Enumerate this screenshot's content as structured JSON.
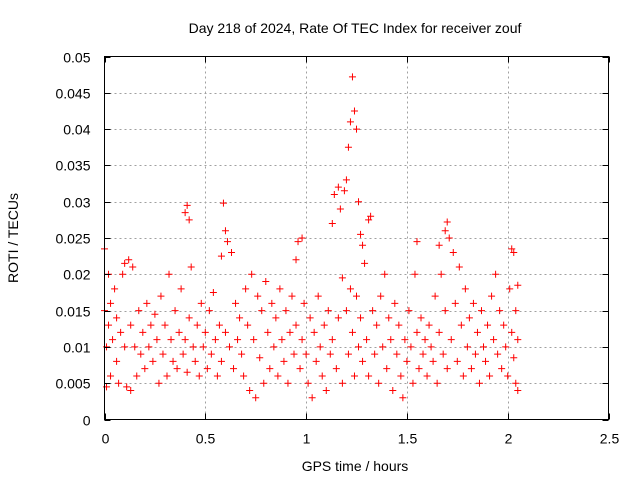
{
  "chart_data": {
    "type": "scatter",
    "title": "Day 218 of 2024, Rate Of TEC Index for receiver zouf",
    "xlabel": "GPS time / hours",
    "ylabel": "ROTI / TECUs",
    "xlim": [
      0,
      2.5
    ],
    "ylim": [
      0,
      0.05
    ],
    "x_ticks": [
      "0",
      "0.5",
      "1",
      "1.5",
      "2",
      "2.5"
    ],
    "y_ticks": [
      "0",
      "0.005",
      "0.01",
      "0.015",
      "0.02",
      "0.025",
      "0.03",
      "0.035",
      "0.04",
      "0.045",
      "0.05"
    ],
    "x_tick_values": [
      0,
      0.5,
      1,
      1.5,
      2,
      2.5
    ],
    "y_tick_values": [
      0,
      0.005,
      0.01,
      0.015,
      0.02,
      0.025,
      0.03,
      0.035,
      0.04,
      0.045,
      0.05
    ],
    "grid": true,
    "marker": "+",
    "color": "#ff0000",
    "series": [
      {
        "name": "ROTI",
        "points": [
          [
            0.0,
            0.0235
          ],
          [
            0.0,
            0.015
          ],
          [
            0.01,
            0.01
          ],
          [
            0.01,
            0.0045
          ],
          [
            0.02,
            0.02
          ],
          [
            0.02,
            0.013
          ],
          [
            0.03,
            0.016
          ],
          [
            0.03,
            0.006
          ],
          [
            0.04,
            0.011
          ],
          [
            0.05,
            0.018
          ],
          [
            0.06,
            0.014
          ],
          [
            0.06,
            0.008
          ],
          [
            0.07,
            0.005
          ],
          [
            0.08,
            0.012
          ],
          [
            0.09,
            0.02
          ],
          [
            0.1,
            0.0215
          ],
          [
            0.1,
            0.01
          ],
          [
            0.11,
            0.0045
          ],
          [
            0.12,
            0.022
          ],
          [
            0.13,
            0.013
          ],
          [
            0.13,
            0.004
          ],
          [
            0.14,
            0.021
          ],
          [
            0.15,
            0.01
          ],
          [
            0.16,
            0.006
          ],
          [
            0.17,
            0.015
          ],
          [
            0.18,
            0.009
          ],
          [
            0.19,
            0.012
          ],
          [
            0.2,
            0.007
          ],
          [
            0.21,
            0.016
          ],
          [
            0.22,
            0.01
          ],
          [
            0.23,
            0.013
          ],
          [
            0.24,
            0.008
          ],
          [
            0.25,
            0.0145
          ],
          [
            0.26,
            0.011
          ],
          [
            0.27,
            0.005
          ],
          [
            0.28,
            0.017
          ],
          [
            0.29,
            0.009
          ],
          [
            0.3,
            0.013
          ],
          [
            0.31,
            0.006
          ],
          [
            0.32,
            0.02
          ],
          [
            0.33,
            0.011
          ],
          [
            0.34,
            0.008
          ],
          [
            0.35,
            0.015
          ],
          [
            0.36,
            0.007
          ],
          [
            0.37,
            0.012
          ],
          [
            0.38,
            0.018
          ],
          [
            0.39,
            0.009
          ],
          [
            0.4,
            0.0285
          ],
          [
            0.4,
            0.011
          ],
          [
            0.41,
            0.0295
          ],
          [
            0.41,
            0.0065
          ],
          [
            0.42,
            0.0275
          ],
          [
            0.42,
            0.014
          ],
          [
            0.43,
            0.021
          ],
          [
            0.44,
            0.01
          ],
          [
            0.45,
            0.008
          ],
          [
            0.46,
            0.013
          ],
          [
            0.47,
            0.006
          ],
          [
            0.48,
            0.016
          ],
          [
            0.49,
            0.01
          ],
          [
            0.5,
            0.012
          ],
          [
            0.51,
            0.007
          ],
          [
            0.52,
            0.015
          ],
          [
            0.53,
            0.009
          ],
          [
            0.54,
            0.0175
          ],
          [
            0.55,
            0.011
          ],
          [
            0.56,
            0.006
          ],
          [
            0.57,
            0.013
          ],
          [
            0.58,
            0.0225
          ],
          [
            0.58,
            0.008
          ],
          [
            0.59,
            0.0298
          ],
          [
            0.6,
            0.026
          ],
          [
            0.6,
            0.012
          ],
          [
            0.61,
            0.0245
          ],
          [
            0.62,
            0.01
          ],
          [
            0.63,
            0.023
          ],
          [
            0.64,
            0.007
          ],
          [
            0.65,
            0.016
          ],
          [
            0.66,
            0.011
          ],
          [
            0.67,
            0.014
          ],
          [
            0.68,
            0.009
          ],
          [
            0.69,
            0.006
          ],
          [
            0.7,
            0.018
          ],
          [
            0.71,
            0.013
          ],
          [
            0.72,
            0.004
          ],
          [
            0.73,
            0.02
          ],
          [
            0.74,
            0.011
          ],
          [
            0.75,
            0.003
          ],
          [
            0.76,
            0.017
          ],
          [
            0.77,
            0.0085
          ],
          [
            0.78,
            0.015
          ],
          [
            0.79,
            0.005
          ],
          [
            0.8,
            0.019
          ],
          [
            0.81,
            0.012
          ],
          [
            0.82,
            0.007
          ],
          [
            0.83,
            0.016
          ],
          [
            0.84,
            0.01
          ],
          [
            0.85,
            0.014
          ],
          [
            0.86,
            0.006
          ],
          [
            0.87,
            0.018
          ],
          [
            0.88,
            0.011
          ],
          [
            0.89,
            0.008
          ],
          [
            0.9,
            0.015
          ],
          [
            0.91,
            0.005
          ],
          [
            0.92,
            0.012
          ],
          [
            0.93,
            0.017
          ],
          [
            0.94,
            0.009
          ],
          [
            0.95,
            0.022
          ],
          [
            0.95,
            0.013
          ],
          [
            0.96,
            0.0245
          ],
          [
            0.97,
            0.007
          ],
          [
            0.98,
            0.025
          ],
          [
            0.98,
            0.011
          ],
          [
            0.99,
            0.016
          ],
          [
            1.0,
            0.009
          ],
          [
            1.01,
            0.005
          ],
          [
            1.02,
            0.014
          ],
          [
            1.03,
            0.003
          ],
          [
            1.04,
            0.012
          ],
          [
            1.05,
            0.008
          ],
          [
            1.06,
            0.017
          ],
          [
            1.07,
            0.01
          ],
          [
            1.08,
            0.006
          ],
          [
            1.09,
            0.013
          ],
          [
            1.1,
            0.004
          ],
          [
            1.11,
            0.015
          ],
          [
            1.12,
            0.009
          ],
          [
            1.13,
            0.027
          ],
          [
            1.13,
            0.011
          ],
          [
            1.14,
            0.031
          ],
          [
            1.15,
            0.007
          ],
          [
            1.16,
            0.032
          ],
          [
            1.16,
            0.014
          ],
          [
            1.17,
            0.029
          ],
          [
            1.18,
            0.0195
          ],
          [
            1.18,
            0.005
          ],
          [
            1.19,
            0.0315
          ],
          [
            1.2,
            0.033
          ],
          [
            1.2,
            0.015
          ],
          [
            1.21,
            0.0375
          ],
          [
            1.21,
            0.009
          ],
          [
            1.22,
            0.041
          ],
          [
            1.22,
            0.018
          ],
          [
            1.23,
            0.0472
          ],
          [
            1.23,
            0.012
          ],
          [
            1.24,
            0.0425
          ],
          [
            1.24,
            0.006
          ],
          [
            1.25,
            0.04
          ],
          [
            1.25,
            0.017
          ],
          [
            1.26,
            0.03
          ],
          [
            1.26,
            0.01
          ],
          [
            1.27,
            0.0255
          ],
          [
            1.27,
            0.014
          ],
          [
            1.28,
            0.024
          ],
          [
            1.28,
            0.008
          ],
          [
            1.29,
            0.0215
          ],
          [
            1.3,
            0.011
          ],
          [
            1.31,
            0.0275
          ],
          [
            1.31,
            0.006
          ],
          [
            1.32,
            0.028
          ],
          [
            1.33,
            0.015
          ],
          [
            1.34,
            0.009
          ],
          [
            1.35,
            0.013
          ],
          [
            1.36,
            0.005
          ],
          [
            1.37,
            0.017
          ],
          [
            1.38,
            0.01
          ],
          [
            1.39,
            0.02
          ],
          [
            1.4,
            0.007
          ],
          [
            1.41,
            0.014
          ],
          [
            1.42,
            0.011
          ],
          [
            1.43,
            0.004
          ],
          [
            1.44,
            0.016
          ],
          [
            1.45,
            0.009
          ],
          [
            1.46,
            0.013
          ],
          [
            1.47,
            0.006
          ],
          [
            1.48,
            0.003
          ],
          [
            1.49,
            0.011
          ],
          [
            1.5,
            0.008
          ],
          [
            1.51,
            0.015
          ],
          [
            1.52,
            0.01
          ],
          [
            1.53,
            0.005
          ],
          [
            1.54,
            0.02
          ],
          [
            1.55,
            0.0245
          ],
          [
            1.55,
            0.012
          ],
          [
            1.56,
            0.007
          ],
          [
            1.57,
            0.014
          ],
          [
            1.58,
            0.009
          ],
          [
            1.59,
            0.011
          ],
          [
            1.6,
            0.006
          ],
          [
            1.61,
            0.013
          ],
          [
            1.62,
            0.01
          ],
          [
            1.63,
            0.008
          ],
          [
            1.64,
            0.017
          ],
          [
            1.65,
            0.005
          ],
          [
            1.66,
            0.024
          ],
          [
            1.66,
            0.012
          ],
          [
            1.67,
            0.02
          ],
          [
            1.68,
            0.009
          ],
          [
            1.69,
            0.026
          ],
          [
            1.69,
            0.015
          ],
          [
            1.7,
            0.0272
          ],
          [
            1.7,
            0.007
          ],
          [
            1.71,
            0.025
          ],
          [
            1.72,
            0.011
          ],
          [
            1.73,
            0.023
          ],
          [
            1.74,
            0.016
          ],
          [
            1.75,
            0.008
          ],
          [
            1.76,
            0.021
          ],
          [
            1.77,
            0.013
          ],
          [
            1.78,
            0.006
          ],
          [
            1.79,
            0.018
          ],
          [
            1.8,
            0.01
          ],
          [
            1.81,
            0.014
          ],
          [
            1.82,
            0.007
          ],
          [
            1.83,
            0.016
          ],
          [
            1.84,
            0.009
          ],
          [
            1.85,
            0.012
          ],
          [
            1.86,
            0.005
          ],
          [
            1.87,
            0.015
          ],
          [
            1.88,
            0.01
          ],
          [
            1.89,
            0.008
          ],
          [
            1.9,
            0.013
          ],
          [
            1.91,
            0.006
          ],
          [
            1.92,
            0.017
          ],
          [
            1.93,
            0.011
          ],
          [
            1.94,
            0.02
          ],
          [
            1.95,
            0.009
          ],
          [
            1.96,
            0.015
          ],
          [
            1.97,
            0.007
          ],
          [
            1.98,
            0.013
          ],
          [
            1.99,
            0.01
          ],
          [
            2.0,
            0.006
          ],
          [
            2.01,
            0.018
          ],
          [
            2.02,
            0.012
          ],
          [
            2.02,
            0.0235
          ],
          [
            2.03,
            0.0085
          ],
          [
            2.03,
            0.023
          ],
          [
            2.04,
            0.015
          ],
          [
            2.04,
            0.005
          ],
          [
            2.05,
            0.0185
          ],
          [
            2.05,
            0.011
          ],
          [
            2.05,
            0.004
          ]
        ]
      }
    ]
  }
}
